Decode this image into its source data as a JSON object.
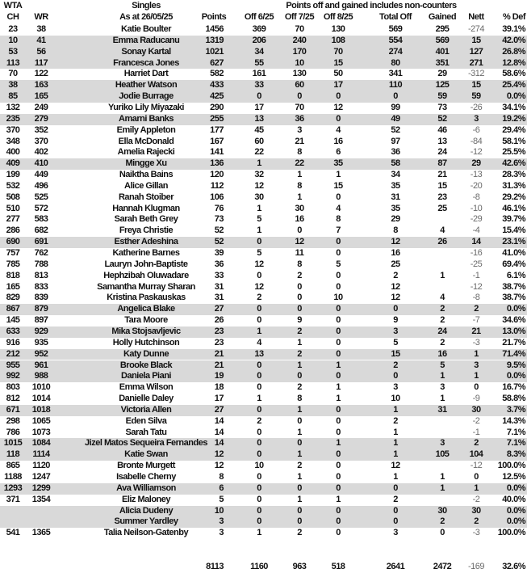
{
  "header": {
    "wta": "WTA",
    "singles": "Singles",
    "points_note": "Points off and gained includes non-counters",
    "columns": [
      "CH",
      "WR",
      "As at 26/05/25",
      "Points",
      "Off 6/25",
      "Off 7/25",
      "Off 8/25",
      "Total Off",
      "Gained",
      "Nett",
      "% Def"
    ]
  },
  "rows": [
    {
      "cells": [
        "23",
        "38",
        "Katie Boulter",
        "1456",
        "369",
        "70",
        "130",
        "569",
        "295",
        "-274",
        "39.1%"
      ],
      "shaded": false
    },
    {
      "cells": [
        "10",
        "41",
        "Emma Raducanu",
        "1319",
        "206",
        "240",
        "108",
        "554",
        "569",
        "15",
        "42.0%"
      ],
      "shaded": true
    },
    {
      "cells": [
        "53",
        "56",
        "Sonay Kartal",
        "1021",
        "34",
        "170",
        "70",
        "274",
        "401",
        "127",
        "26.8%"
      ],
      "shaded": true
    },
    {
      "cells": [
        "113",
        "117",
        "Francesca Jones",
        "627",
        "55",
        "10",
        "15",
        "80",
        "351",
        "271",
        "12.8%"
      ],
      "shaded": true
    },
    {
      "cells": [
        "70",
        "122",
        "Harriet Dart",
        "582",
        "161",
        "130",
        "50",
        "341",
        "29",
        "-312",
        "58.6%"
      ],
      "shaded": false
    },
    {
      "cells": [
        "38",
        "163",
        "Heather Watson",
        "433",
        "33",
        "60",
        "17",
        "110",
        "125",
        "15",
        "25.4%"
      ],
      "shaded": true
    },
    {
      "cells": [
        "85",
        "165",
        "Jodie Burrage",
        "425",
        "0",
        "0",
        "0",
        "0",
        "59",
        "59",
        "0.0%"
      ],
      "shaded": true
    },
    {
      "cells": [
        "132",
        "249",
        "Yuriko Lily Miyazaki",
        "290",
        "17",
        "70",
        "12",
        "99",
        "73",
        "-26",
        "34.1%"
      ],
      "shaded": false
    },
    {
      "cells": [
        "235",
        "279",
        "Amarni Banks",
        "255",
        "13",
        "36",
        "0",
        "49",
        "52",
        "3",
        "19.2%"
      ],
      "shaded": true
    },
    {
      "cells": [
        "370",
        "352",
        "Emily Appleton",
        "177",
        "45",
        "3",
        "4",
        "52",
        "46",
        "-6",
        "29.4%"
      ],
      "shaded": false
    },
    {
      "cells": [
        "348",
        "370",
        "Ella McDonald",
        "167",
        "60",
        "21",
        "16",
        "97",
        "13",
        "-84",
        "58.1%"
      ],
      "shaded": false
    },
    {
      "cells": [
        "400",
        "402",
        "Amelia Rajecki",
        "141",
        "22",
        "8",
        "6",
        "36",
        "24",
        "-12",
        "25.5%"
      ],
      "shaded": false
    },
    {
      "cells": [
        "409",
        "410",
        "Mingge Xu",
        "136",
        "1",
        "22",
        "35",
        "58",
        "87",
        "29",
        "42.6%"
      ],
      "shaded": true
    },
    {
      "cells": [
        "199",
        "449",
        "Naiktha Bains",
        "120",
        "32",
        "1",
        "1",
        "34",
        "21",
        "-13",
        "28.3%"
      ],
      "shaded": false
    },
    {
      "cells": [
        "532",
        "496",
        "Alice Gillan",
        "112",
        "12",
        "8",
        "15",
        "35",
        "15",
        "-20",
        "31.3%"
      ],
      "shaded": false
    },
    {
      "cells": [
        "508",
        "525",
        "Ranah Stoiber",
        "106",
        "30",
        "1",
        "0",
        "31",
        "23",
        "-8",
        "29.2%"
      ],
      "shaded": false
    },
    {
      "cells": [
        "510",
        "572",
        "Hannah Klugman",
        "76",
        "1",
        "30",
        "4",
        "35",
        "25",
        "-10",
        "46.1%"
      ],
      "shaded": false
    },
    {
      "cells": [
        "277",
        "583",
        "Sarah Beth Grey",
        "73",
        "5",
        "16",
        "8",
        "29",
        "",
        "-29",
        "39.7%"
      ],
      "shaded": false
    },
    {
      "cells": [
        "286",
        "682",
        "Freya Christie",
        "52",
        "1",
        "0",
        "7",
        "8",
        "4",
        "-4",
        "15.4%"
      ],
      "shaded": false
    },
    {
      "cells": [
        "690",
        "691",
        "Esther Adeshina",
        "52",
        "0",
        "12",
        "0",
        "12",
        "26",
        "14",
        "23.1%"
      ],
      "shaded": true
    },
    {
      "cells": [
        "757",
        "762",
        "Katherine Barnes",
        "39",
        "5",
        "11",
        "0",
        "16",
        "",
        "-16",
        "41.0%"
      ],
      "shaded": false
    },
    {
      "cells": [
        "785",
        "788",
        "Lauryn John-Baptiste",
        "36",
        "12",
        "8",
        "5",
        "25",
        "",
        "-25",
        "69.4%"
      ],
      "shaded": false
    },
    {
      "cells": [
        "818",
        "813",
        "Hephzibah Oluwadare",
        "33",
        "0",
        "2",
        "0",
        "2",
        "1",
        "-1",
        "6.1%"
      ],
      "shaded": false
    },
    {
      "cells": [
        "165",
        "833",
        "Samantha Murray Sharan",
        "31",
        "12",
        "0",
        "0",
        "12",
        "",
        "-12",
        "38.7%"
      ],
      "shaded": false
    },
    {
      "cells": [
        "829",
        "839",
        "Kristina Paskauskas",
        "31",
        "2",
        "0",
        "10",
        "12",
        "4",
        "-8",
        "38.7%"
      ],
      "shaded": false
    },
    {
      "cells": [
        "867",
        "879",
        "Angelica Blake",
        "27",
        "0",
        "0",
        "0",
        "0",
        "2",
        "2",
        "0.0%"
      ],
      "shaded": true
    },
    {
      "cells": [
        "145",
        "897",
        "Tara Moore",
        "26",
        "0",
        "9",
        "0",
        "9",
        "2",
        "-7",
        "34.6%"
      ],
      "shaded": false
    },
    {
      "cells": [
        "633",
        "929",
        "Mika Stojsavljevic",
        "23",
        "1",
        "2",
        "0",
        "3",
        "24",
        "21",
        "13.0%"
      ],
      "shaded": true
    },
    {
      "cells": [
        "916",
        "935",
        "Holly Hutchinson",
        "23",
        "4",
        "1",
        "0",
        "5",
        "2",
        "-3",
        "21.7%"
      ],
      "shaded": false
    },
    {
      "cells": [
        "212",
        "952",
        "Katy Dunne",
        "21",
        "13",
        "2",
        "0",
        "15",
        "16",
        "1",
        "71.4%"
      ],
      "shaded": true
    },
    {
      "cells": [
        "955",
        "961",
        "Brooke Black",
        "21",
        "0",
        "1",
        "1",
        "2",
        "5",
        "3",
        "9.5%"
      ],
      "shaded": true
    },
    {
      "cells": [
        "992",
        "988",
        "Daniela Piani",
        "19",
        "0",
        "0",
        "0",
        "0",
        "1",
        "1",
        "0.0%"
      ],
      "shaded": true
    },
    {
      "cells": [
        "803",
        "1010",
        "Emma Wilson",
        "18",
        "0",
        "2",
        "1",
        "3",
        "3",
        "0",
        "16.7%"
      ],
      "shaded": false
    },
    {
      "cells": [
        "812",
        "1014",
        "Danielle Daley",
        "17",
        "1",
        "8",
        "1",
        "10",
        "1",
        "-9",
        "58.8%"
      ],
      "shaded": false
    },
    {
      "cells": [
        "671",
        "1018",
        "Victoria Allen",
        "27",
        "0",
        "1",
        "0",
        "1",
        "31",
        "30",
        "3.7%"
      ],
      "shaded": true
    },
    {
      "cells": [
        "298",
        "1065",
        "Eden Silva",
        "14",
        "2",
        "0",
        "0",
        "2",
        "",
        "-2",
        "14.3%"
      ],
      "shaded": false
    },
    {
      "cells": [
        "786",
        "1073",
        "Sarah Tatu",
        "14",
        "0",
        "1",
        "0",
        "1",
        "",
        "-1",
        "7.1%"
      ],
      "shaded": false
    },
    {
      "cells": [
        "1015",
        "1084",
        "Jizel Matos Sequeira Fernandes",
        "14",
        "0",
        "0",
        "1",
        "1",
        "3",
        "2",
        "7.1%"
      ],
      "shaded": true
    },
    {
      "cells": [
        "118",
        "1114",
        "Katie Swan",
        "12",
        "0",
        "1",
        "0",
        "1",
        "105",
        "104",
        "8.3%"
      ],
      "shaded": true
    },
    {
      "cells": [
        "865",
        "1120",
        "Bronte Murgett",
        "12",
        "10",
        "2",
        "0",
        "12",
        "",
        "-12",
        "100.0%"
      ],
      "shaded": false
    },
    {
      "cells": [
        "1188",
        "1247",
        "Isabelle Cherny",
        "8",
        "0",
        "1",
        "0",
        "1",
        "1",
        "0",
        "12.5%"
      ],
      "shaded": false
    },
    {
      "cells": [
        "1293",
        "1299",
        "Ava Williamson",
        "6",
        "0",
        "0",
        "0",
        "0",
        "1",
        "1",
        "0.0%"
      ],
      "shaded": true
    },
    {
      "cells": [
        "371",
        "1354",
        "Eliz Maloney",
        "5",
        "0",
        "1",
        "1",
        "2",
        "",
        "-2",
        "40.0%"
      ],
      "shaded": false
    },
    {
      "cells": [
        "",
        "",
        "Alicia Dudeny",
        "10",
        "0",
        "0",
        "0",
        "0",
        "30",
        "30",
        "0.0%"
      ],
      "shaded": true
    },
    {
      "cells": [
        "",
        "",
        "Summer Yardley",
        "3",
        "0",
        "0",
        "0",
        "0",
        "2",
        "2",
        "0.0%"
      ],
      "shaded": true
    },
    {
      "cells": [
        "541",
        "1365",
        "Talia Neilson-Gatenby",
        "3",
        "1",
        "2",
        "0",
        "3",
        "0",
        "-3",
        "100.0%"
      ],
      "shaded": false
    }
  ],
  "totals": [
    "",
    "",
    "",
    "8113",
    "1160",
    "963",
    "518",
    "2641",
    "2472",
    "-169",
    "32.6%"
  ],
  "colors": {
    "shade": "#d9d9d9",
    "negative": "#6b6b6b"
  }
}
